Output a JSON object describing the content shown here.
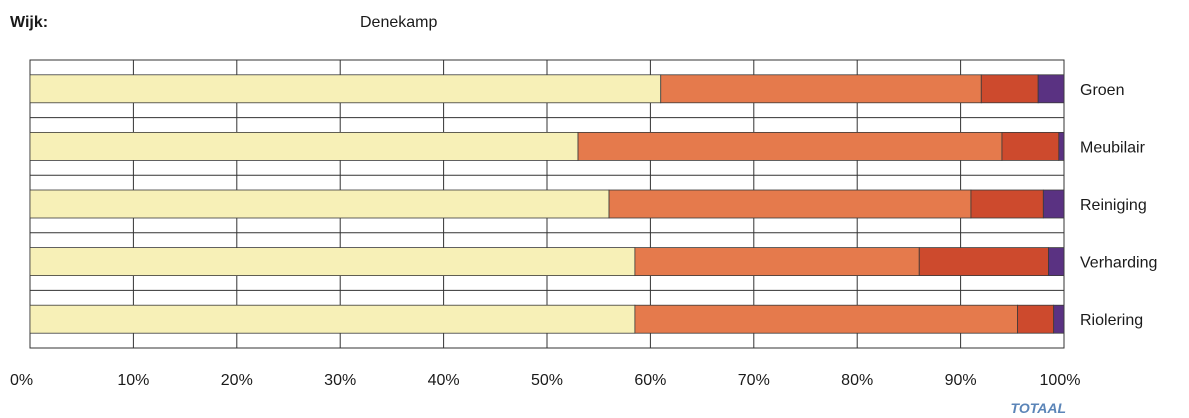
{
  "header": {
    "label": "Wijk:",
    "value": "Denekamp"
  },
  "footer": {
    "note": "TOTAAL"
  },
  "chart_data": {
    "type": "bar",
    "orientation": "horizontal",
    "stacked": true,
    "normalized": true,
    "categories": [
      "Groen",
      "Meubilair",
      "Reiniging",
      "Verharding",
      "Riolering"
    ],
    "series": [
      {
        "color": "#f7f0b7",
        "values": [
          61,
          53,
          56,
          58.5,
          58.5
        ]
      },
      {
        "color": "#e57a4c",
        "values": [
          31,
          41,
          35,
          27.5,
          37
        ]
      },
      {
        "color": "#cd4a2d",
        "values": [
          5.5,
          5.5,
          7,
          12.5,
          3.5
        ]
      },
      {
        "color": "#5a3282",
        "values": [
          2.5,
          0.5,
          2,
          1.5,
          1
        ]
      }
    ],
    "xlim": [
      0,
      100
    ],
    "x_ticks": [
      "0%",
      "10%",
      "20%",
      "30%",
      "40%",
      "50%",
      "60%",
      "70%",
      "80%",
      "90%",
      "100%"
    ],
    "grid": true,
    "legend": "none"
  }
}
